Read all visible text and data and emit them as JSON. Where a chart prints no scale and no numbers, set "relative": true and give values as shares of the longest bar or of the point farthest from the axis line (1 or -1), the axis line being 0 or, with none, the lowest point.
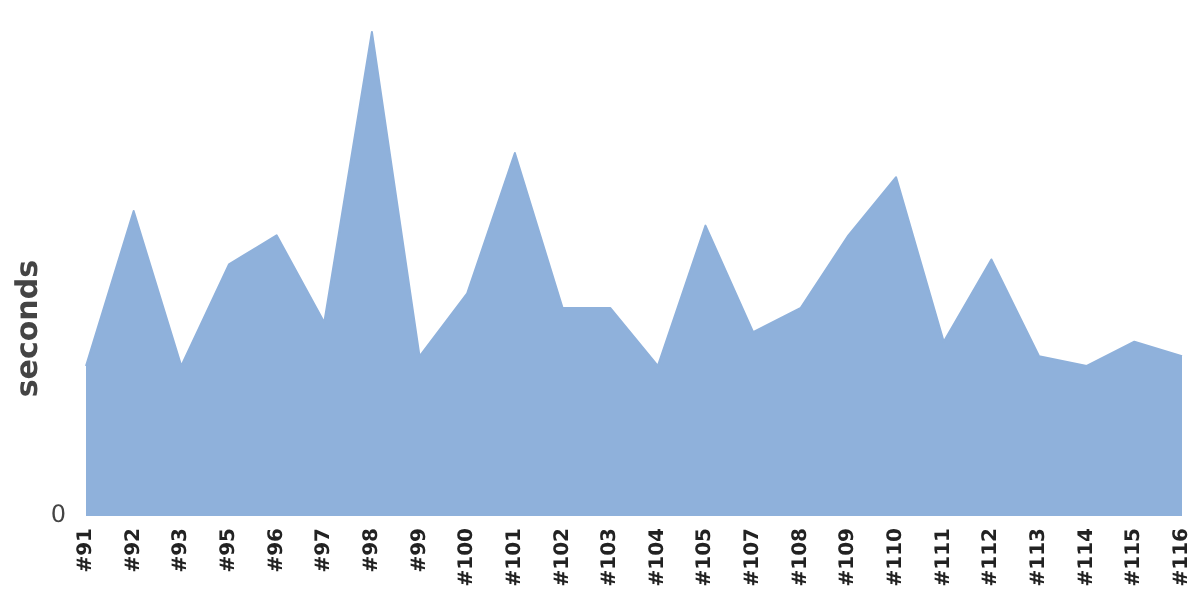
{
  "chart_data": {
    "type": "area",
    "relative": true,
    "ylabel": "seconds",
    "annotations": [
      "0"
    ],
    "categories": [
      "#91",
      "#92",
      "#93",
      "#95",
      "#96",
      "#97",
      "#98",
      "#99",
      "#100",
      "#101",
      "#102",
      "#103",
      "#104",
      "#105",
      "#107",
      "#108",
      "#109",
      "#110",
      "#111",
      "#112",
      "#113",
      "#114",
      "#115",
      "#116"
    ],
    "series": [
      {
        "color": "#8fb1db",
        "values": [
          0.31,
          0.63,
          0.31,
          0.52,
          0.58,
          0.4,
          1,
          0.33,
          0.46,
          0.75,
          0.43,
          0.43,
          0.31,
          0.6,
          0.38,
          0.43,
          0.58,
          0.7,
          0.36,
          0.53,
          0.33,
          0.31,
          0.36,
          0.33
        ]
      }
    ],
    "line_style": "solid"
  }
}
